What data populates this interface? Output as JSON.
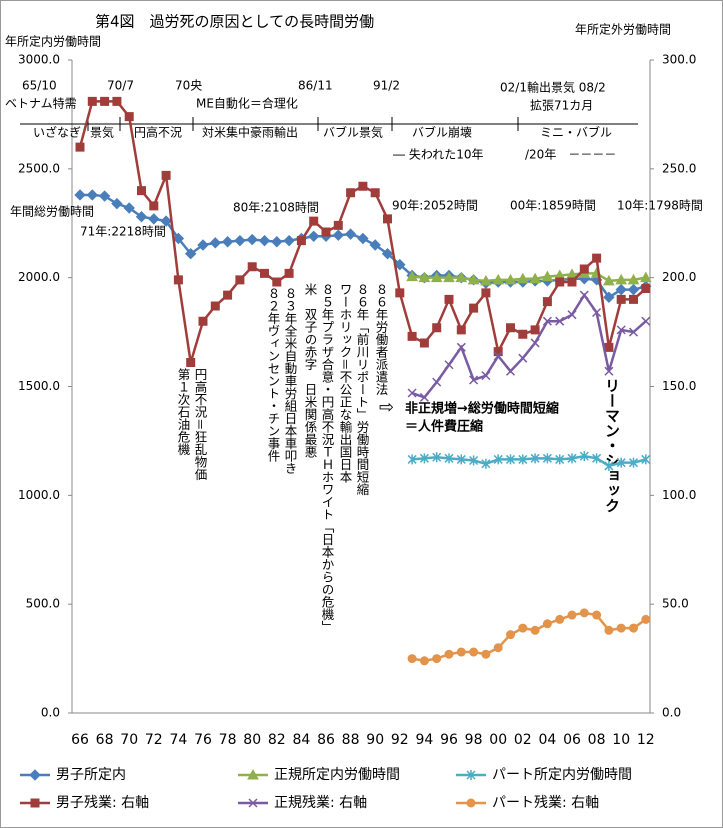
{
  "chart_data": {
    "type": "line",
    "title": "第4図　過労死の原因としての長時間労働",
    "ylabel": "年所定内労働時間",
    "y2label": "年所定外労働時間",
    "categories": [
      "66",
      null,
      "68",
      null,
      "70",
      null,
      "72",
      null,
      "74",
      null,
      "76",
      null,
      "78",
      null,
      "80",
      null,
      "82",
      null,
      "84",
      null,
      "86",
      null,
      "88",
      null,
      "90",
      null,
      "92",
      null,
      "94",
      null,
      "96",
      null,
      "98",
      null,
      "00",
      null,
      "02",
      null,
      "04",
      null,
      "06",
      null,
      "08",
      null,
      "10",
      null,
      "12"
    ],
    "ylim": [
      0,
      3000
    ],
    "yticks": [
      {
        "value": 0,
        "label": "0.0"
      },
      {
        "value": 500,
        "label": "500.0"
      },
      {
        "value": 1000,
        "label": "1000.0"
      },
      {
        "value": 1500,
        "label": "1500.0"
      },
      {
        "value": 2000,
        "label": "2000.0"
      },
      {
        "value": 2500,
        "label": "2500.0"
      },
      {
        "value": 3000,
        "label": "3000.0"
      }
    ],
    "y2lim": [
      0,
      300
    ],
    "y2ticks": [
      {
        "value": 0,
        "label": "0.0"
      },
      {
        "value": 50,
        "label": "50.0"
      },
      {
        "value": 100,
        "label": "100.0"
      },
      {
        "value": 150,
        "label": "150.0"
      },
      {
        "value": 200,
        "label": "200.0"
      },
      {
        "value": 250,
        "label": "250.0"
      },
      {
        "value": 300,
        "label": "300.0"
      }
    ],
    "grid": false,
    "legend": "bottom",
    "series": [
      {
        "name": "男子所定内",
        "color": "#4a7ebb",
        "marker": "diamond",
        "values": [
          2380,
          2380,
          2375,
          2340,
          2320,
          2280,
          2270,
          2260,
          2180,
          2110,
          2150,
          2160,
          2165,
          2170,
          2175,
          2170,
          2165,
          2170,
          2180,
          2190,
          2190,
          2195,
          2200,
          2180,
          2150,
          2110,
          2060,
          2010,
          2000,
          2010,
          2010,
          2000,
          1990,
          1975,
          1980,
          1980,
          1980,
          1985,
          1985,
          1990,
          1995,
          1995,
          1990,
          1910,
          1945,
          1945,
          1960
        ]
      },
      {
        "name": "正規所定内労働時間",
        "color": "#8fb04a",
        "marker": "triangle",
        "values": [
          null,
          null,
          null,
          null,
          null,
          null,
          null,
          null,
          null,
          null,
          null,
          null,
          null,
          null,
          null,
          null,
          null,
          null,
          null,
          null,
          null,
          null,
          null,
          null,
          null,
          null,
          null,
          2005,
          2000,
          2000,
          2000,
          2000,
          1990,
          1985,
          1990,
          1990,
          1995,
          1995,
          2005,
          2010,
          2015,
          2020,
          2020,
          1985,
          1990,
          1990,
          2000
        ]
      },
      {
        "name": "パート所定内労働時間",
        "color": "#4bacc6",
        "marker": "star",
        "values": [
          null,
          null,
          null,
          null,
          null,
          null,
          null,
          null,
          null,
          null,
          null,
          null,
          null,
          null,
          null,
          null,
          null,
          null,
          null,
          null,
          null,
          null,
          null,
          null,
          null,
          null,
          null,
          1165,
          1170,
          1175,
          1170,
          1165,
          1160,
          1145,
          1165,
          1165,
          1165,
          1170,
          1170,
          1165,
          1170,
          1180,
          1170,
          1135,
          1150,
          1150,
          1165
        ]
      },
      {
        "name": "男子残業: 右軸",
        "color": "#a03c3a",
        "marker": "square",
        "axis": "y2",
        "values": [
          260,
          281,
          281,
          281,
          274,
          240,
          233,
          247,
          199,
          161,
          180,
          187,
          192,
          199,
          205,
          202,
          198,
          202,
          217,
          226,
          221,
          224,
          239,
          242,
          239,
          227,
          193,
          173,
          170,
          177,
          190,
          176,
          186,
          193,
          166,
          177,
          174,
          176,
          189,
          198,
          198,
          204,
          209,
          168,
          190,
          190,
          195
        ]
      },
      {
        "name": "正規残業: 右軸",
        "color": "#7a5ba3",
        "marker": "x",
        "axis": "y2",
        "values": [
          null,
          null,
          null,
          null,
          null,
          null,
          null,
          null,
          null,
          null,
          null,
          null,
          null,
          null,
          null,
          null,
          null,
          null,
          null,
          null,
          null,
          null,
          null,
          null,
          null,
          null,
          null,
          147,
          145,
          152,
          160,
          168,
          153,
          155,
          164,
          157,
          163,
          170,
          180,
          180,
          183,
          192,
          184,
          157,
          176,
          175,
          180
        ]
      },
      {
        "name": "パート残業: 右軸",
        "color": "#e3934a",
        "marker": "circle",
        "axis": "y2",
        "values": [
          null,
          null,
          null,
          null,
          null,
          null,
          null,
          null,
          null,
          null,
          null,
          null,
          null,
          null,
          null,
          null,
          null,
          null,
          null,
          null,
          null,
          null,
          null,
          null,
          null,
          null,
          null,
          25,
          24,
          25,
          27,
          28,
          28,
          27,
          30,
          36,
          39,
          38,
          41,
          43,
          45,
          46,
          45,
          38,
          39,
          39,
          43
        ]
      }
    ],
    "annotations": [
      "65/10",
      "ベトナム特需",
      "70/7",
      "70央",
      "ME自動化＝合理化",
      "86/11",
      "91/2",
      "02/1輸出景気 08/2",
      "拡張71カ月",
      "いざなぎ",
      "景気",
      "円高不況",
      "対米集中豪雨輸出",
      "バブル景気",
      "バブル崩壊",
      "― 失われた10年",
      "ミニ・バブル",
      "/20年　－－－－",
      "年間総労働時間",
      "71年:2218時間",
      "80年:2108時間",
      "90年:2052時間",
      "00年:1859時間",
      "10年:1798時間",
      "第１次石油危機",
      "円高不況＝狂乱物価",
      "８２年ヴィンセント・チン事件",
      "８３年全米自動車労組日本車叩き",
      "米　双子の赤字　日米関係最悪",
      "８５年プラザ合意・円高不況ＴＨホワイト「日本からの危機」",
      "ワーホリック＝不公正な輸出国日本",
      "８６年「前川リポート」労働時間短縮",
      "８６年労働者派遣法",
      "⇨",
      "非正規増→総労働時間短縮",
      "＝人件費圧縮",
      "リーマン・ショック"
    ]
  }
}
